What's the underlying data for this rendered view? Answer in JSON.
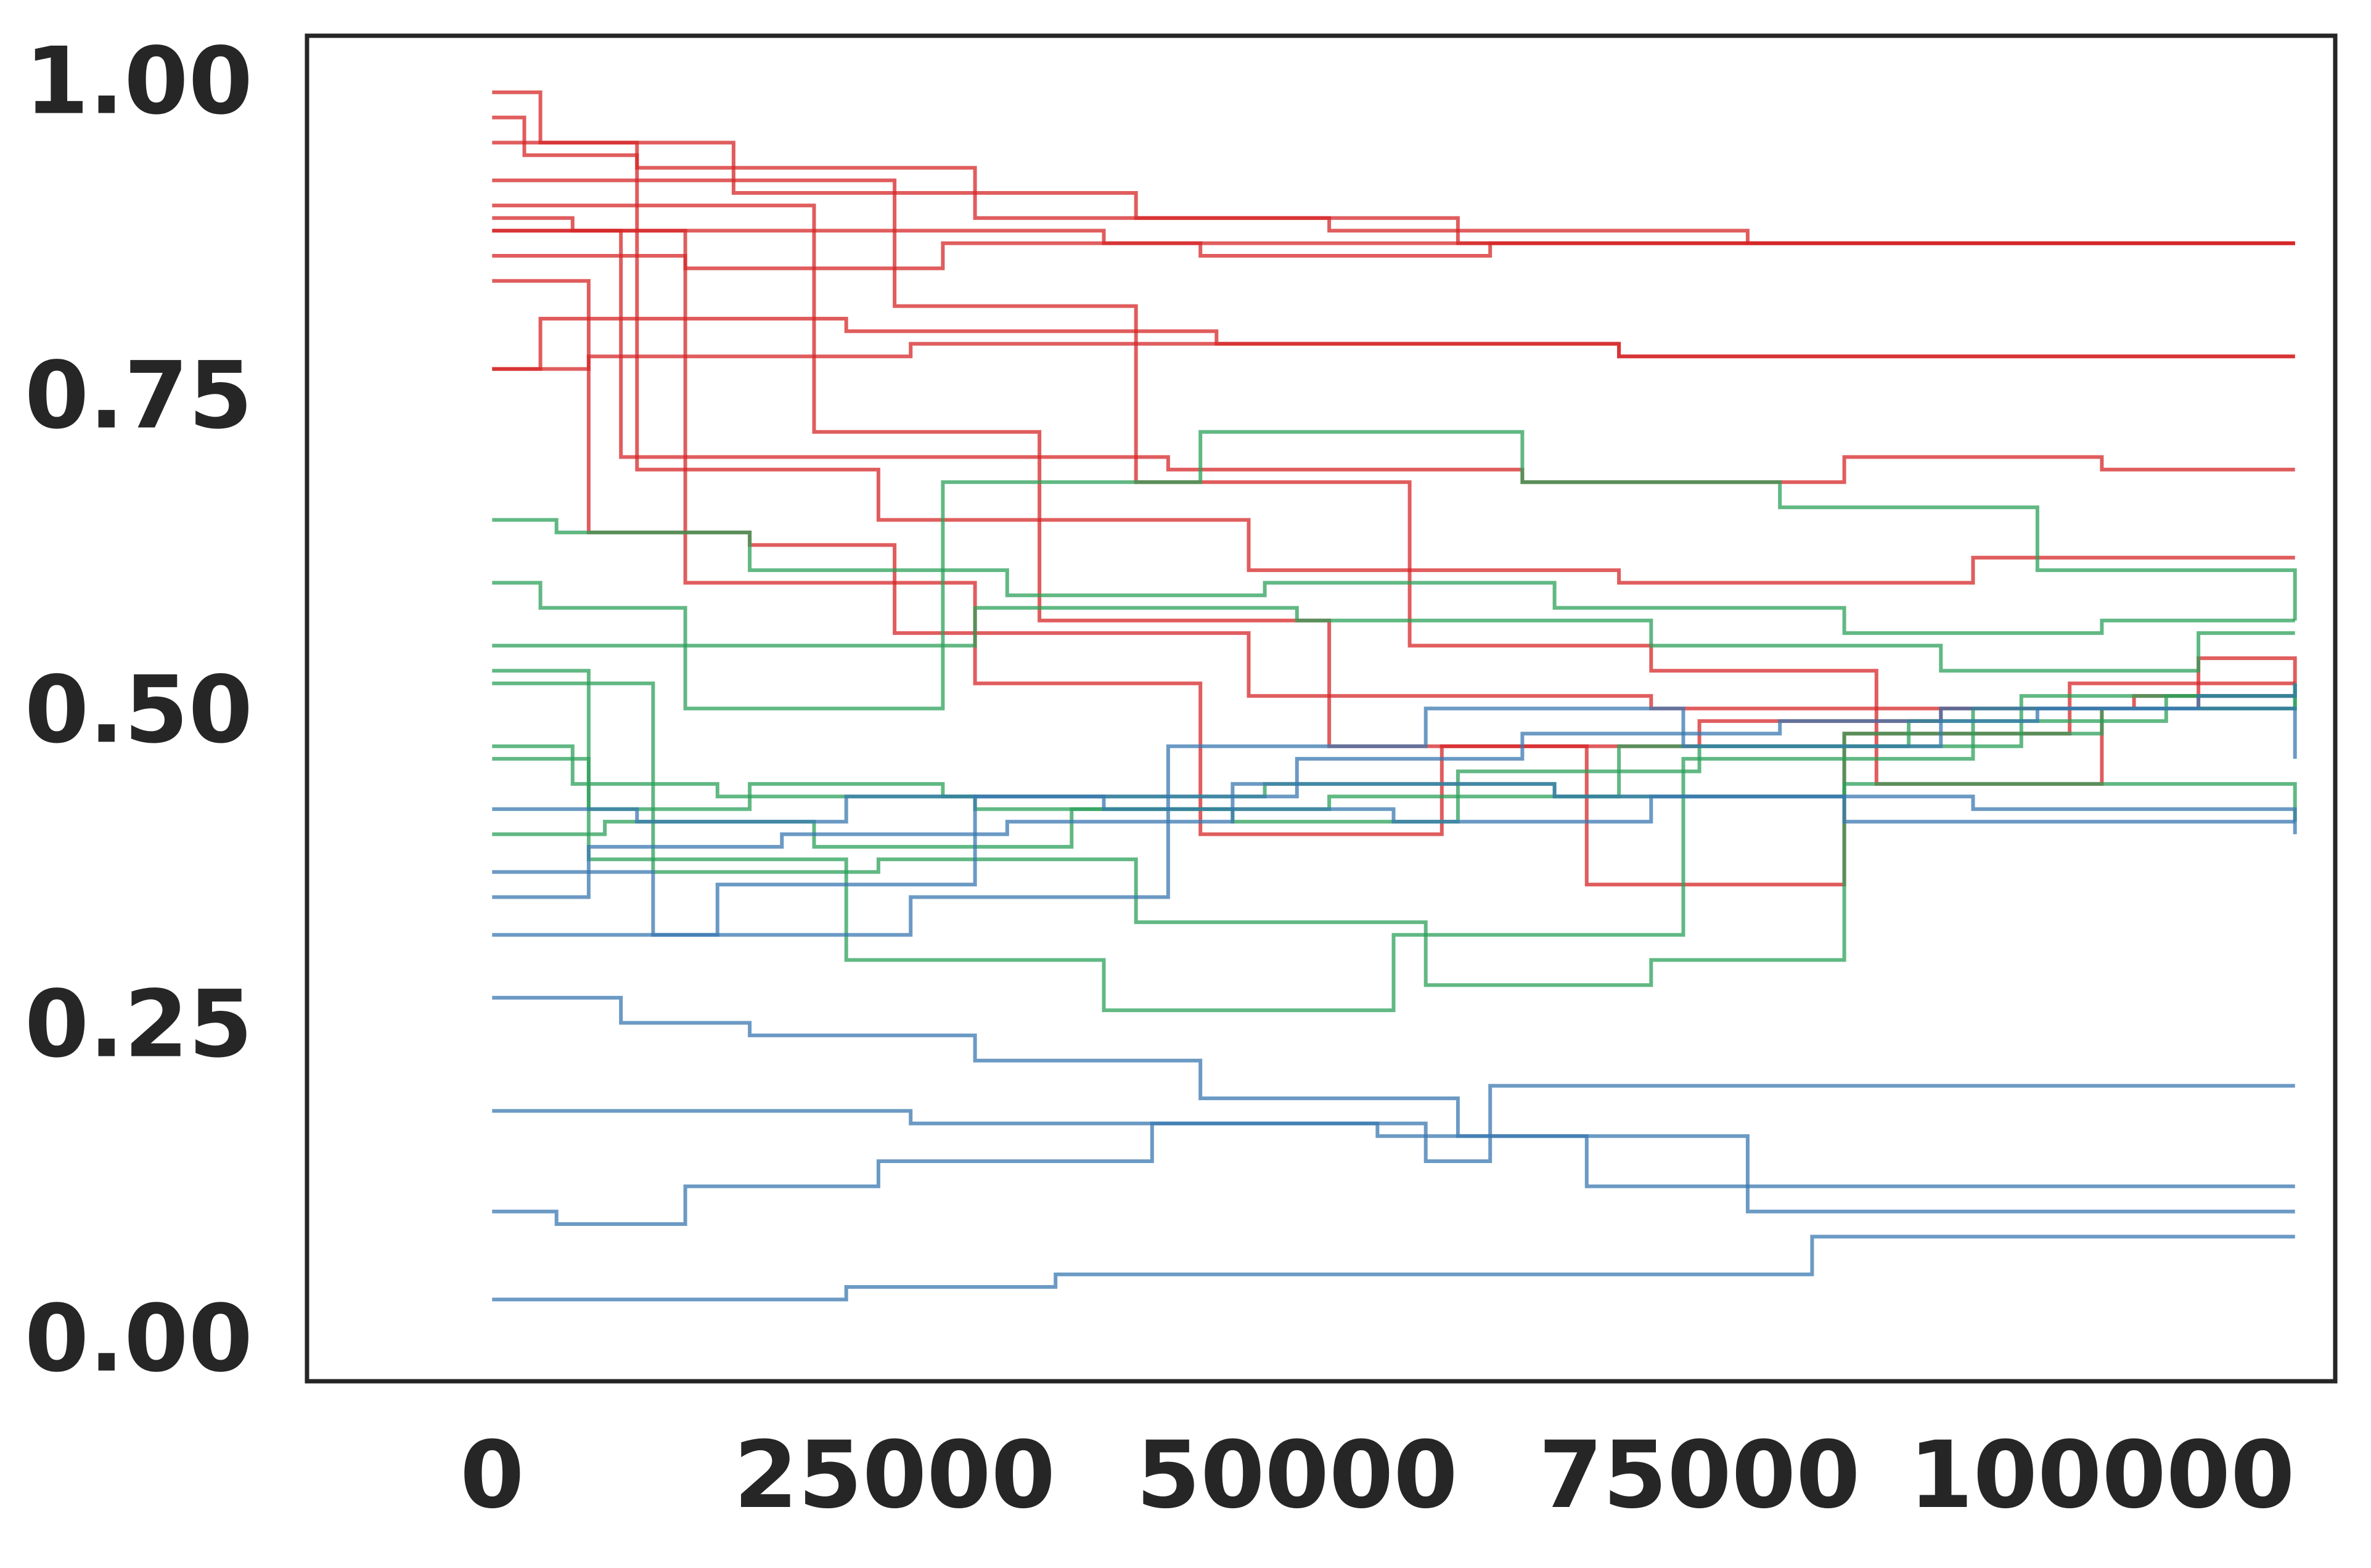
{
  "chart_data": {
    "type": "line",
    "style": "step",
    "title": "",
    "xlabel": "",
    "ylabel": "",
    "xlim": [
      -11500,
      114500
    ],
    "ylim": [
      -0.035,
      1.035
    ],
    "xticks": [
      0,
      25000,
      50000,
      75000,
      100000
    ],
    "xtick_labels": [
      "0",
      "25000",
      "50000",
      "75000",
      "100000"
    ],
    "yticks": [
      0.0,
      0.25,
      0.5,
      0.75,
      1.0
    ],
    "ytick_labels": [
      "0.00",
      "0.25",
      "0.50",
      "0.75",
      "1.00"
    ],
    "grid": false,
    "legend": "none",
    "colors": {
      "red": "#d62728",
      "green": "#2ca05a",
      "blue": "#3a78b0",
      "frame": "#262626"
    },
    "series": [
      {
        "color": "red",
        "x": [
          0,
          3000,
          15000,
          40000,
          60000,
          112000
        ],
        "y": [
          0.99,
          0.95,
          0.91,
          0.89,
          0.87,
          0.87
        ]
      },
      {
        "color": "red",
        "x": [
          0,
          2000,
          9000,
          30000,
          52000,
          78000,
          112000
        ],
        "y": [
          0.97,
          0.94,
          0.93,
          0.89,
          0.88,
          0.87,
          0.87
        ]
      },
      {
        "color": "red",
        "x": [
          0,
          5000,
          20000,
          38000,
          56000,
          112000
        ],
        "y": [
          0.89,
          0.88,
          0.88,
          0.87,
          0.87,
          0.87
        ]
      },
      {
        "color": "red",
        "x": [
          0,
          4000,
          12000,
          28000,
          44000,
          62000,
          112000
        ],
        "y": [
          0.86,
          0.86,
          0.85,
          0.87,
          0.86,
          0.87,
          0.87
        ]
      },
      {
        "color": "red",
        "x": [
          0,
          3000,
          22000,
          45000,
          70000,
          88000,
          104000,
          112000
        ],
        "y": [
          0.77,
          0.81,
          0.8,
          0.79,
          0.78,
          0.78,
          0.78,
          0.78
        ]
      },
      {
        "color": "red",
        "x": [
          0,
          6000,
          16000,
          26000,
          48000,
          70000,
          104000,
          112000
        ],
        "y": [
          0.77,
          0.78,
          0.78,
          0.79,
          0.79,
          0.78,
          0.78,
          0.78
        ]
      },
      {
        "color": "red",
        "x": [
          0,
          8000,
          18000,
          42000,
          64000,
          84000,
          100000,
          112000
        ],
        "y": [
          0.88,
          0.7,
          0.7,
          0.69,
          0.68,
          0.7,
          0.69,
          0.69
        ]
      },
      {
        "color": "red",
        "x": [
          0,
          9000,
          24000,
          47000,
          70000,
          92000,
          112000
        ],
        "y": [
          0.95,
          0.69,
          0.65,
          0.61,
          0.6,
          0.62,
          0.62
        ]
      },
      {
        "color": "red",
        "x": [
          0,
          6000,
          16000,
          25000,
          47000,
          72000,
          98000,
          112000
        ],
        "y": [
          0.84,
          0.64,
          0.63,
          0.56,
          0.51,
          0.5,
          0.52,
          0.52
        ]
      },
      {
        "color": "red",
        "x": [
          0,
          12000,
          30000,
          44000,
          59000,
          75000,
          90000,
          102000,
          112000
        ],
        "y": [
          0.88,
          0.6,
          0.52,
          0.4,
          0.47,
          0.49,
          0.5,
          0.51,
          0.51
        ]
      },
      {
        "color": "red",
        "x": [
          0,
          20000,
          34000,
          52000,
          68000,
          84000,
          98000,
          106000,
          112000
        ],
        "y": [
          0.9,
          0.72,
          0.57,
          0.47,
          0.36,
          0.48,
          0.5,
          0.54,
          0.52
        ]
      },
      {
        "color": "red",
        "x": [
          0,
          25000,
          40000,
          57000,
          72000,
          86000,
          100000,
          106000,
          112000
        ],
        "y": [
          0.92,
          0.82,
          0.68,
          0.55,
          0.53,
          0.44,
          0.5,
          0.5,
          0.5
        ]
      },
      {
        "color": "green",
        "x": [
          0,
          4000,
          16000,
          32000,
          48000,
          66000,
          84000,
          100000,
          112000
        ],
        "y": [
          0.65,
          0.64,
          0.61,
          0.59,
          0.6,
          0.58,
          0.56,
          0.57,
          0.57
        ]
      },
      {
        "color": "green",
        "x": [
          0,
          3000,
          12000,
          30000,
          50000,
          72000,
          90000,
          106000,
          112000
        ],
        "y": [
          0.6,
          0.58,
          0.55,
          0.58,
          0.57,
          0.55,
          0.53,
          0.56,
          0.56
        ]
      },
      {
        "color": "green",
        "x": [
          0,
          5000,
          14000,
          30000,
          46000,
          60000,
          75000,
          95000,
          112000
        ],
        "y": [
          0.47,
          0.44,
          0.43,
          0.42,
          0.41,
          0.45,
          0.47,
          0.51,
          0.52
        ]
      },
      {
        "color": "green",
        "x": [
          0,
          6000,
          16000,
          28000,
          48000,
          66000,
          84000,
          100000,
          112000
        ],
        "y": [
          0.46,
          0.42,
          0.44,
          0.43,
          0.44,
          0.43,
          0.48,
          0.5,
          0.52
        ]
      },
      {
        "color": "green",
        "x": [
          0,
          7000,
          20000,
          36000,
          52000,
          70000,
          88000,
          104000,
          112000
        ],
        "y": [
          0.4,
          0.41,
          0.39,
          0.42,
          0.43,
          0.47,
          0.49,
          0.51,
          0.51
        ]
      },
      {
        "color": "green",
        "x": [
          0,
          10000,
          24000,
          40000,
          58000,
          72000,
          84000,
          112000
        ],
        "y": [
          0.52,
          0.37,
          0.38,
          0.33,
          0.28,
          0.3,
          0.44,
          0.41
        ]
      },
      {
        "color": "green",
        "x": [
          0,
          12000,
          28000,
          44000,
          64000,
          80000,
          96000,
          112000
        ],
        "y": [
          0.55,
          0.5,
          0.68,
          0.72,
          0.68,
          0.66,
          0.61,
          0.57
        ]
      },
      {
        "color": "green",
        "x": [
          0,
          6000,
          22000,
          38000,
          56000,
          74000,
          92000,
          112000
        ],
        "y": [
          0.53,
          0.38,
          0.3,
          0.26,
          0.32,
          0.46,
          0.5,
          0.52
        ]
      },
      {
        "color": "blue",
        "x": [
          0,
          7000,
          22000,
          35000,
          54000,
          62000,
          82000,
          112000
        ],
        "y": [
          0.03,
          0.03,
          0.04,
          0.05,
          0.05,
          0.05,
          0.08,
          0.08
        ]
      },
      {
        "color": "blue",
        "x": [
          0,
          3000,
          14000,
          26000,
          42000,
          58000,
          62000,
          112000
        ],
        "y": [
          0.18,
          0.18,
          0.18,
          0.17,
          0.17,
          0.14,
          0.2,
          0.2
        ]
      },
      {
        "color": "blue",
        "x": [
          0,
          4000,
          12000,
          24000,
          41000,
          55000,
          68000,
          112000
        ],
        "y": [
          0.1,
          0.09,
          0.12,
          0.14,
          0.17,
          0.16,
          0.12,
          0.12
        ]
      },
      {
        "color": "blue",
        "x": [
          0,
          8000,
          16000,
          30000,
          44000,
          60000,
          78000,
          112000
        ],
        "y": [
          0.27,
          0.25,
          0.24,
          0.22,
          0.19,
          0.16,
          0.1,
          0.1
        ]
      },
      {
        "color": "blue",
        "x": [
          0,
          6000,
          18000,
          32000,
          46000,
          66000,
          84000,
          112000
        ],
        "y": [
          0.35,
          0.39,
          0.4,
          0.41,
          0.44,
          0.43,
          0.41,
          0.41
        ]
      },
      {
        "color": "blue",
        "x": [
          0,
          9000,
          22000,
          38000,
          56000,
          72000,
          92000,
          112000
        ],
        "y": [
          0.42,
          0.41,
          0.43,
          0.42,
          0.41,
          0.43,
          0.42,
          0.4
        ]
      },
      {
        "color": "blue",
        "x": [
          0,
          14000,
          30000,
          50000,
          64000,
          80000,
          96000,
          112000
        ],
        "y": [
          0.32,
          0.36,
          0.43,
          0.46,
          0.48,
          0.49,
          0.5,
          0.46
        ]
      },
      {
        "color": "blue",
        "x": [
          0,
          10000,
          26000,
          42000,
          58000,
          74000,
          90000,
          106000,
          112000
        ],
        "y": [
          0.37,
          0.32,
          0.35,
          0.47,
          0.5,
          0.47,
          0.5,
          0.51,
          0.52
        ]
      }
    ]
  }
}
